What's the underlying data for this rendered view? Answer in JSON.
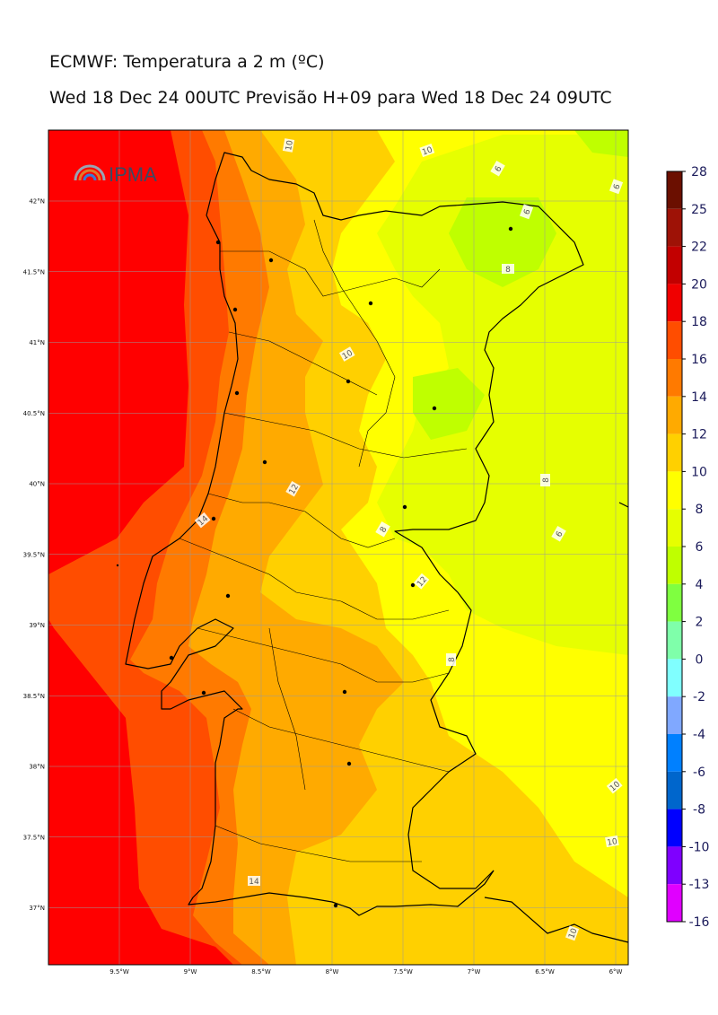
{
  "title": "ECMWF: Temperatura a 2 m (ºC)",
  "subtitle": "Wed 18 Dec 24 00UTC Previsão H+09 para Wed 18 Dec 24 09UTC",
  "logo_text": "IPMA",
  "lat_labels": [
    {
      "lat": 42.0,
      "label": "42°N"
    },
    {
      "lat": 41.5,
      "label": "41.5°N"
    },
    {
      "lat": 41.0,
      "label": "41°N"
    },
    {
      "lat": 40.5,
      "label": "40.5°N"
    },
    {
      "lat": 40.0,
      "label": "40°N"
    },
    {
      "lat": 39.5,
      "label": "39.5°N"
    },
    {
      "lat": 39.0,
      "label": "39°N"
    },
    {
      "lat": 38.5,
      "label": "38.5°N"
    },
    {
      "lat": 38.0,
      "label": "38°N"
    },
    {
      "lat": 37.5,
      "label": "37.5°N"
    },
    {
      "lat": 37.0,
      "label": "37°N"
    }
  ],
  "lon_labels": [
    {
      "lon": -9.5,
      "label": "9.5°W"
    },
    {
      "lon": -9.0,
      "label": "9°W"
    },
    {
      "lon": -8.5,
      "label": "8.5°W"
    },
    {
      "lon": -8.0,
      "label": "8°W"
    },
    {
      "lon": -7.5,
      "label": "7.5°W"
    },
    {
      "lon": -7.0,
      "label": "7°W"
    },
    {
      "lon": -6.5,
      "label": "6.5°W"
    },
    {
      "lon": -6.0,
      "label": "6°W"
    }
  ],
  "colorbar": [
    {
      "label": "28",
      "color": "#6b0f00"
    },
    {
      "label": "25",
      "color": "#9e1206"
    },
    {
      "label": "22",
      "color": "#c20000"
    },
    {
      "label": "20",
      "color": "#f00000"
    },
    {
      "label": "18",
      "color": "#ff4d00"
    },
    {
      "label": "16",
      "color": "#ff7a00"
    },
    {
      "label": "14",
      "color": "#ffaa00"
    },
    {
      "label": "12",
      "color": "#ffd000"
    },
    {
      "label": "10",
      "color": "#ffff00"
    },
    {
      "label": "8",
      "color": "#e6ff00"
    },
    {
      "label": "6",
      "color": "#bfff00"
    },
    {
      "label": "4",
      "color": "#7fff40"
    },
    {
      "label": "2",
      "color": "#7fffaa"
    },
    {
      "label": "0",
      "color": "#80ffff"
    },
    {
      "label": "-2",
      "color": "#80a8ff"
    },
    {
      "label": "-4",
      "color": "#0080ff"
    },
    {
      "label": "-6",
      "color": "#0066cc"
    },
    {
      "label": "-8",
      "color": "#0000ff"
    },
    {
      "label": "-10",
      "color": "#7f00ff"
    },
    {
      "label": "-13",
      "color": "#e000ff"
    },
    {
      "label": "-16",
      "color": ""
    }
  ],
  "contour_labels": [
    "10",
    "10",
    "6",
    "6",
    "6",
    "8",
    "10",
    "12",
    "14",
    "8",
    "8",
    "12",
    "6",
    "8",
    "14",
    "10",
    "10",
    "10"
  ],
  "colors": {
    "sea_far": "#ff0000",
    "sea_near": "#ff4d00",
    "coast_band": "#ff7a00",
    "inland_warm": "#ffaa00",
    "inland_mid": "#ffd000",
    "inland_cool": "#ffff00",
    "interior_cold": "#e6ff00",
    "interior_colder": "#bfff00",
    "frame": "#000000"
  }
}
